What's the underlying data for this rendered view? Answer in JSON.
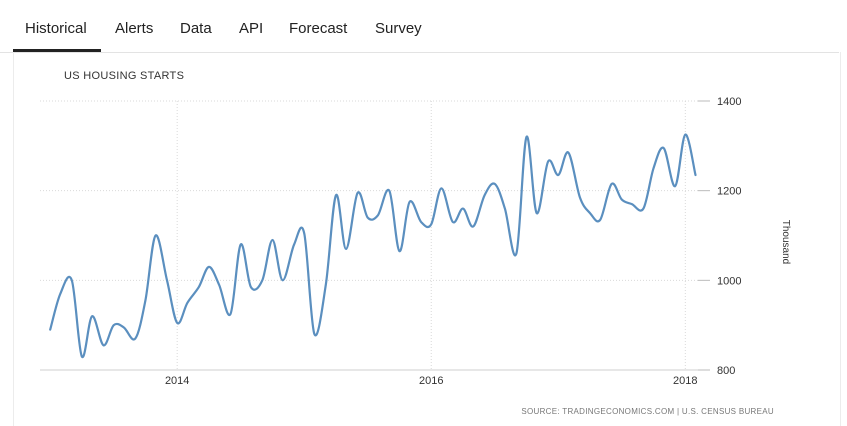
{
  "tabs": [
    {
      "label": "Historical",
      "active": true
    },
    {
      "label": "Alerts"
    },
    {
      "label": "Data"
    },
    {
      "label": "API"
    },
    {
      "label": "Forecast"
    },
    {
      "label": "Survey"
    }
  ],
  "chart_data": {
    "type": "line",
    "title": "US HOUSING STARTS",
    "ylabel": "Thousand",
    "ylim": [
      800,
      1400
    ],
    "yticks": [
      800,
      1000,
      1200,
      1400
    ],
    "xticks": [
      {
        "label": "2014",
        "x": 2014.0
      },
      {
        "label": "2016",
        "x": 2016.0
      },
      {
        "label": "2018",
        "x": 2018.0
      }
    ],
    "xlim": [
      2012.92,
      2018.1
    ],
    "grid": true,
    "line_color": "#5b8fbf",
    "source": "SOURCE: TRADINGECONOMICS.COM | U.S. CENSUS BUREAU",
    "series": [
      {
        "x": [
          2013.0,
          2013.08,
          2013.17,
          2013.25,
          2013.33,
          2013.42,
          2013.5,
          2013.58,
          2013.67,
          2013.75,
          2013.83,
          2013.92,
          2014.0,
          2014.08,
          2014.17,
          2014.25,
          2014.33,
          2014.42,
          2014.5,
          2014.58,
          2014.67,
          2014.75,
          2014.83,
          2014.92,
          2015.0,
          2015.08,
          2015.17,
          2015.25,
          2015.33,
          2015.42,
          2015.5,
          2015.58,
          2015.67,
          2015.75,
          2015.83,
          2015.92,
          2016.0,
          2016.08,
          2016.17,
          2016.25,
          2016.33,
          2016.42,
          2016.5,
          2016.58,
          2016.67,
          2016.75,
          2016.83,
          2016.92,
          2017.0,
          2017.08,
          2017.17,
          2017.25,
          2017.33,
          2017.42,
          2017.5,
          2017.58,
          2017.67,
          2017.75,
          2017.83,
          2017.92,
          2018.0,
          2018.08
        ],
        "values": [
          890,
          970,
          1000,
          830,
          920,
          855,
          900,
          895,
          870,
          955,
          1100,
          1000,
          905,
          950,
          985,
          1030,
          990,
          925,
          1080,
          985,
          1000,
          1090,
          1000,
          1080,
          1105,
          880,
          990,
          1190,
          1070,
          1195,
          1140,
          1145,
          1200,
          1065,
          1175,
          1130,
          1125,
          1205,
          1130,
          1160,
          1120,
          1190,
          1215,
          1160,
          1060,
          1320,
          1150,
          1265,
          1235,
          1285,
          1185,
          1150,
          1135,
          1215,
          1180,
          1170,
          1160,
          1250,
          1295,
          1210,
          1325,
          1235
        ]
      }
    ]
  }
}
